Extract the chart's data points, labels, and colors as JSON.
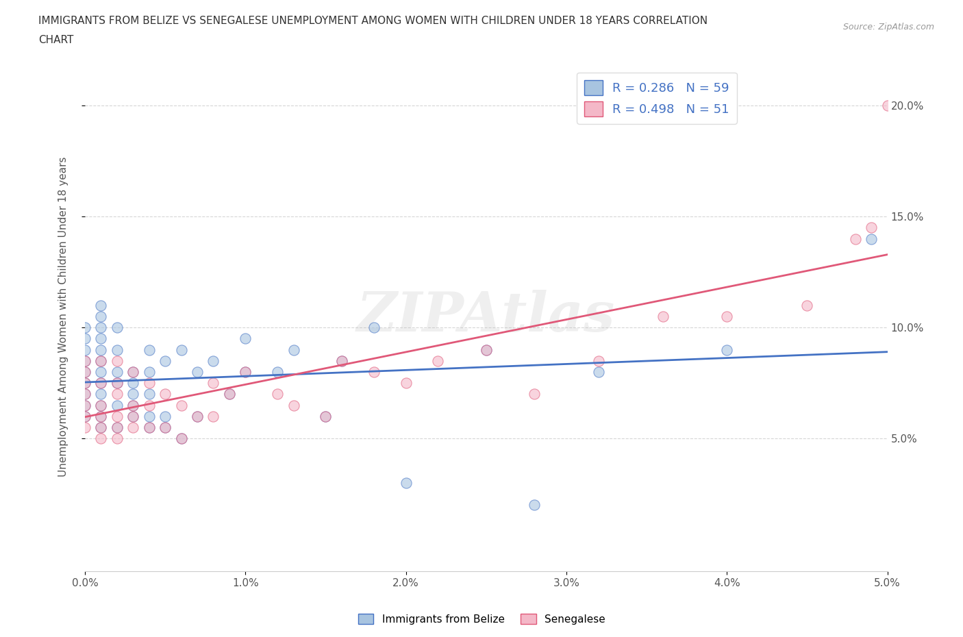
{
  "title": "IMMIGRANTS FROM BELIZE VS SENEGALESE UNEMPLOYMENT AMONG WOMEN WITH CHILDREN UNDER 18 YEARS CORRELATION\nCHART",
  "source": "Source: ZipAtlas.com",
  "ylabel": "Unemployment Among Women with Children Under 18 years",
  "r_belize": 0.286,
  "n_belize": 59,
  "r_senegalese": 0.498,
  "n_senegalese": 51,
  "color_belize": "#a8c4e0",
  "color_senegalese": "#f4b8c8",
  "line_color_belize": "#4472c4",
  "line_color_senegalese": "#e05878",
  "legend_text_color": "#4472c4",
  "xmin": 0.0,
  "xmax": 0.05,
  "ymin": -0.01,
  "ymax": 0.22,
  "yticks": [
    0.05,
    0.1,
    0.15,
    0.2
  ],
  "ytick_labels": [
    "5.0%",
    "10.0%",
    "15.0%",
    "20.0%"
  ],
  "belize_x": [
    0.0,
    0.0,
    0.0,
    0.0,
    0.0,
    0.0,
    0.0,
    0.0,
    0.0,
    0.001,
    0.001,
    0.001,
    0.001,
    0.001,
    0.001,
    0.001,
    0.001,
    0.001,
    0.001,
    0.001,
    0.001,
    0.002,
    0.002,
    0.002,
    0.002,
    0.002,
    0.002,
    0.003,
    0.003,
    0.003,
    0.003,
    0.003,
    0.004,
    0.004,
    0.004,
    0.004,
    0.004,
    0.005,
    0.005,
    0.005,
    0.006,
    0.006,
    0.007,
    0.007,
    0.008,
    0.009,
    0.01,
    0.01,
    0.012,
    0.013,
    0.015,
    0.016,
    0.018,
    0.02,
    0.025,
    0.028,
    0.032,
    0.04,
    0.049
  ],
  "belize_y": [
    0.07,
    0.075,
    0.08,
    0.085,
    0.09,
    0.095,
    0.06,
    0.065,
    0.1,
    0.055,
    0.06,
    0.065,
    0.07,
    0.075,
    0.08,
    0.085,
    0.09,
    0.095,
    0.1,
    0.105,
    0.11,
    0.055,
    0.065,
    0.075,
    0.08,
    0.09,
    0.1,
    0.06,
    0.065,
    0.07,
    0.075,
    0.08,
    0.055,
    0.06,
    0.07,
    0.08,
    0.09,
    0.055,
    0.06,
    0.085,
    0.05,
    0.09,
    0.06,
    0.08,
    0.085,
    0.07,
    0.08,
    0.095,
    0.08,
    0.09,
    0.06,
    0.085,
    0.1,
    0.03,
    0.09,
    0.02,
    0.08,
    0.09,
    0.14
  ],
  "senegalese_x": [
    0.0,
    0.0,
    0.0,
    0.0,
    0.0,
    0.0,
    0.0,
    0.001,
    0.001,
    0.001,
    0.001,
    0.001,
    0.001,
    0.002,
    0.002,
    0.002,
    0.002,
    0.002,
    0.002,
    0.003,
    0.003,
    0.003,
    0.003,
    0.004,
    0.004,
    0.004,
    0.005,
    0.005,
    0.006,
    0.006,
    0.007,
    0.008,
    0.008,
    0.009,
    0.01,
    0.012,
    0.013,
    0.015,
    0.016,
    0.018,
    0.02,
    0.022,
    0.025,
    0.028,
    0.032,
    0.036,
    0.04,
    0.045,
    0.048,
    0.049,
    0.05
  ],
  "senegalese_y": [
    0.055,
    0.06,
    0.065,
    0.07,
    0.075,
    0.08,
    0.085,
    0.05,
    0.055,
    0.06,
    0.065,
    0.075,
    0.085,
    0.05,
    0.055,
    0.06,
    0.07,
    0.075,
    0.085,
    0.055,
    0.06,
    0.065,
    0.08,
    0.055,
    0.065,
    0.075,
    0.055,
    0.07,
    0.05,
    0.065,
    0.06,
    0.06,
    0.075,
    0.07,
    0.08,
    0.07,
    0.065,
    0.06,
    0.085,
    0.08,
    0.075,
    0.085,
    0.09,
    0.07,
    0.085,
    0.105,
    0.105,
    0.11,
    0.14,
    0.145,
    0.2
  ]
}
